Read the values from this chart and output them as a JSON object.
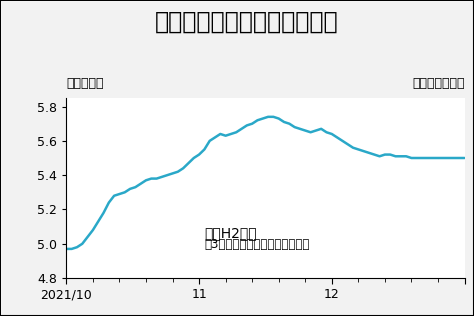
{
  "title": "国内相場の軟調は続きそうだ",
  "ylabel": "万円／トン",
  "source": "産業新聞社調べ",
  "annotation_line1": "国内H2価格",
  "annotation_line2": "（3地区電炉メーカー買値平均）",
  "ylim": [
    4.8,
    5.85
  ],
  "yticks": [
    4.8,
    5.0,
    5.2,
    5.4,
    5.6,
    5.8
  ],
  "line_color": "#2aa8c8",
  "background_color": "#f2f2f2",
  "chart_bg": "#ffffff",
  "x_values": [
    0,
    1,
    2,
    3,
    4,
    5,
    6,
    7,
    8,
    9,
    10,
    11,
    12,
    13,
    14,
    15,
    16,
    17,
    18,
    19,
    20,
    21,
    22,
    23,
    24,
    25,
    26,
    27,
    28,
    29,
    30,
    31,
    32,
    33,
    34,
    35,
    36,
    37,
    38,
    39,
    40,
    41,
    42,
    43,
    44,
    45,
    46,
    47,
    48,
    49,
    50,
    51,
    52,
    53,
    54,
    55,
    56,
    57,
    58,
    59,
    60,
    61,
    62,
    63,
    64,
    65,
    66,
    67,
    68,
    69,
    70,
    71,
    72,
    73,
    74,
    75
  ],
  "y_values": [
    4.97,
    4.97,
    4.98,
    5.0,
    5.04,
    5.08,
    5.13,
    5.18,
    5.24,
    5.28,
    5.29,
    5.3,
    5.32,
    5.33,
    5.35,
    5.37,
    5.38,
    5.38,
    5.39,
    5.4,
    5.41,
    5.42,
    5.44,
    5.47,
    5.5,
    5.52,
    5.55,
    5.6,
    5.62,
    5.64,
    5.63,
    5.64,
    5.65,
    5.67,
    5.69,
    5.7,
    5.72,
    5.73,
    5.74,
    5.74,
    5.73,
    5.71,
    5.7,
    5.68,
    5.67,
    5.66,
    5.65,
    5.66,
    5.67,
    5.65,
    5.64,
    5.62,
    5.6,
    5.58,
    5.56,
    5.55,
    5.54,
    5.53,
    5.52,
    5.51,
    5.52,
    5.52,
    5.51,
    5.51,
    5.51,
    5.5,
    5.5,
    5.5,
    5.5,
    5.5,
    5.5,
    5.5,
    5.5,
    5.5,
    5.5,
    5.5
  ],
  "xtick_positions": [
    0,
    25,
    50,
    75
  ],
  "xtick_labels_all": [
    "2021/10",
    "11",
    "12",
    ""
  ],
  "title_fontsize": 17,
  "label_fontsize": 9,
  "tick_fontsize": 9,
  "annotation_fontsize": 10
}
